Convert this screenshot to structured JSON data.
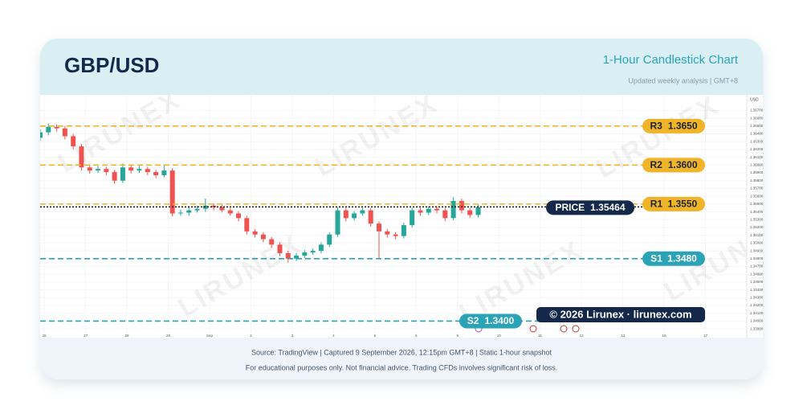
{
  "header": {
    "title": "GBP/USD",
    "chart_name": "1-Hour Candlestick Chart",
    "subtitle": "Updated weekly analysis | GMT+8"
  },
  "chart_data": {
    "type": "candlestick",
    "watermark": "LIRUNEX",
    "y_axis_label": "USD",
    "up_color": "#26a69a",
    "down_color": "#ef5350",
    "grid": true,
    "xlim": [
      -0.1,
      17.0
    ],
    "ylim": [
      1.3385,
      1.369
    ],
    "xticks": [
      {
        "value": 0,
        "label": "26"
      },
      {
        "value": 1,
        "label": "27"
      },
      {
        "value": 2,
        "label": "28"
      },
      {
        "value": 3,
        "label": "29"
      },
      {
        "value": 4,
        "label": "Sep"
      },
      {
        "value": 5,
        "label": "2"
      },
      {
        "value": 6,
        "label": "3"
      },
      {
        "value": 7,
        "label": "4"
      },
      {
        "value": 8,
        "label": "5"
      },
      {
        "value": 9,
        "label": "6"
      },
      {
        "value": 10,
        "label": "9"
      },
      {
        "value": 11,
        "label": "10"
      },
      {
        "value": 12,
        "label": "11"
      },
      {
        "value": 13,
        "label": "12"
      },
      {
        "value": 14,
        "label": "13"
      },
      {
        "value": 15,
        "label": "16"
      },
      {
        "value": 16,
        "label": "17"
      }
    ],
    "yticks": [
      {
        "value": 1.339,
        "label": "1.33900"
      },
      {
        "value": 1.34,
        "label": "1.34000"
      },
      {
        "value": 1.341,
        "label": "1.34100"
      },
      {
        "value": 1.342,
        "label": "1.34200"
      },
      {
        "value": 1.343,
        "label": "1.34300"
      },
      {
        "value": 1.344,
        "label": "1.34400"
      },
      {
        "value": 1.345,
        "label": "1.34500"
      },
      {
        "value": 1.346,
        "label": "1.34600"
      },
      {
        "value": 1.347,
        "label": "1.34700"
      },
      {
        "value": 1.348,
        "label": "1.34800"
      },
      {
        "value": 1.349,
        "label": "1.34900"
      },
      {
        "value": 1.35,
        "label": "1.35000"
      },
      {
        "value": 1.351,
        "label": "1.35100"
      },
      {
        "value": 1.352,
        "label": "1.35200"
      },
      {
        "value": 1.353,
        "label": "1.35300"
      },
      {
        "value": 1.354,
        "label": "1.35400"
      },
      {
        "value": 1.355,
        "label": "1.35500"
      },
      {
        "value": 1.356,
        "label": "1.35600"
      },
      {
        "value": 1.357,
        "label": "1.35700"
      },
      {
        "value": 1.358,
        "label": "1.35800"
      },
      {
        "value": 1.359,
        "label": "1.35900"
      },
      {
        "value": 1.36,
        "label": "1.36000"
      },
      {
        "value": 1.361,
        "label": "1.36100"
      },
      {
        "value": 1.362,
        "label": "1.36200"
      },
      {
        "value": 1.363,
        "label": "1.36300"
      },
      {
        "value": 1.364,
        "label": "1.36400"
      },
      {
        "value": 1.365,
        "label": "1.36500"
      },
      {
        "value": 1.366,
        "label": "1.36600"
      },
      {
        "value": 1.367,
        "label": "1.36700"
      }
    ],
    "x": [
      -0.1,
      0.1,
      0.3,
      0.5,
      0.7,
      0.9,
      1.1,
      1.3,
      1.5,
      1.7,
      1.9,
      2.1,
      2.3,
      2.5,
      2.7,
      2.9,
      3.1,
      3.3,
      3.5,
      3.7,
      3.9,
      4.1,
      4.3,
      4.5,
      4.7,
      4.9,
      5.1,
      5.3,
      5.5,
      5.7,
      5.9,
      6.1,
      6.3,
      6.5,
      6.7,
      6.9,
      7.1,
      7.3,
      7.5,
      7.7,
      7.9,
      8.1,
      8.3,
      8.5,
      8.7,
      8.9,
      9.1,
      9.3,
      9.5,
      9.7,
      9.9,
      10.1,
      10.3,
      10.5
    ],
    "open": [
      1.3635,
      1.3642,
      1.3649,
      1.3647,
      1.3637,
      1.3624,
      1.3597,
      1.3593,
      1.3595,
      1.3591,
      1.358,
      1.3597,
      1.3593,
      1.3595,
      1.3591,
      1.3587,
      1.3593,
      1.3538,
      1.3539,
      1.3542,
      1.3544,
      1.3548,
      1.3546,
      1.3542,
      1.3538,
      1.3532,
      1.3515,
      1.3511,
      1.3505,
      1.3498,
      1.3487,
      1.348,
      1.3484,
      1.3488,
      1.349,
      1.3498,
      1.3511,
      1.3542,
      1.3532,
      1.3538,
      1.3542,
      1.3525,
      1.3515,
      1.3511,
      1.3509,
      1.3523,
      1.3542,
      1.3539,
      1.3544,
      1.3542,
      1.3532,
      1.3554,
      1.3542,
      1.3536
    ],
    "high": [
      1.3646,
      1.3653,
      1.3652,
      1.365,
      1.364,
      1.3627,
      1.3601,
      1.3599,
      1.3598,
      1.3594,
      1.3602,
      1.36,
      1.3599,
      1.3598,
      1.3594,
      1.3601,
      1.3596,
      1.3543,
      1.3546,
      1.3548,
      1.3557,
      1.3551,
      1.3549,
      1.3545,
      1.3541,
      1.3535,
      1.3518,
      1.3514,
      1.3508,
      1.3501,
      1.349,
      1.3487,
      1.3491,
      1.3493,
      1.3501,
      1.3514,
      1.3546,
      1.3545,
      1.3541,
      1.3545,
      1.3545,
      1.3528,
      1.3518,
      1.3514,
      1.3526,
      1.3545,
      1.3545,
      1.3547,
      1.3547,
      1.3545,
      1.3559,
      1.3557,
      1.3545,
      1.3549
    ],
    "low": [
      1.3631,
      1.3638,
      1.3643,
      1.3633,
      1.362,
      1.3593,
      1.3589,
      1.359,
      1.3587,
      1.3576,
      1.3577,
      1.3589,
      1.359,
      1.3587,
      1.3583,
      1.3584,
      1.3534,
      1.3535,
      1.3535,
      1.3539,
      1.354,
      1.3542,
      1.3539,
      1.3535,
      1.3528,
      1.3511,
      1.3507,
      1.3501,
      1.3494,
      1.3483,
      1.3475,
      1.3477,
      1.3481,
      1.3485,
      1.3487,
      1.3495,
      1.3508,
      1.3528,
      1.3529,
      1.3535,
      1.3521,
      1.348,
      1.3507,
      1.3505,
      1.3506,
      1.352,
      1.3535,
      1.3536,
      1.3538,
      1.3528,
      1.3529,
      1.3538,
      1.3532,
      1.3533
    ],
    "close": [
      1.3642,
      1.3649,
      1.3647,
      1.3637,
      1.3624,
      1.3597,
      1.3593,
      1.3595,
      1.3591,
      1.358,
      1.3597,
      1.3593,
      1.3595,
      1.3591,
      1.3587,
      1.3593,
      1.3538,
      1.3539,
      1.3542,
      1.3544,
      1.3548,
      1.3546,
      1.3542,
      1.3538,
      1.3532,
      1.3515,
      1.3511,
      1.3505,
      1.3498,
      1.3487,
      1.348,
      1.3484,
      1.3488,
      1.349,
      1.3498,
      1.3511,
      1.3542,
      1.3532,
      1.3538,
      1.3542,
      1.3525,
      1.3515,
      1.3511,
      1.3509,
      1.3523,
      1.3542,
      1.3539,
      1.3544,
      1.3542,
      1.3532,
      1.3554,
      1.3542,
      1.3536,
      1.3546
    ],
    "levels": [
      {
        "name": "R3",
        "value": 1.365,
        "value_label": "1.3650",
        "color": "#f0b429"
      },
      {
        "name": "R2",
        "value": 1.36,
        "value_label": "1.3600",
        "color": "#f0b429"
      },
      {
        "name": "R1",
        "value": 1.355,
        "value_label": "1.3550",
        "color": "#f0b429"
      },
      {
        "name": "S1",
        "value": 1.348,
        "value_label": "1.3480",
        "color": "#2ba3b7"
      },
      {
        "name": "S2",
        "value": 1.34,
        "value_label": "1.3400",
        "color": "#2ba3b7"
      }
    ],
    "price": {
      "name": "PRICE",
      "value": 1.35464
    },
    "copyright": "© 2026 Lirunex · lirunex.com"
  },
  "footer": {
    "source": "Source: TradingView | Captured 9 September 2026, 12:15pm GMT+8 | Static 1-hour snapshot",
    "disclaimer": "For educational purposes only. Not financial advice. Trading CFDs involves significant risk of loss."
  }
}
